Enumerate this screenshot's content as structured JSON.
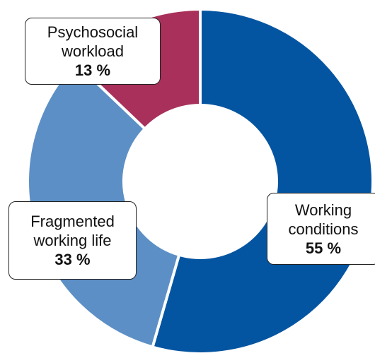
{
  "chart_data": {
    "type": "donut",
    "categories": [
      "Working conditions",
      "Fragmented working life",
      "Psychosocial workload"
    ],
    "values": [
      55,
      33,
      13
    ],
    "value_labels": [
      "55 %",
      "33 %",
      "13 %"
    ],
    "colors": [
      "#0455a1",
      "#5c8fc6",
      "#a8305a"
    ]
  }
}
